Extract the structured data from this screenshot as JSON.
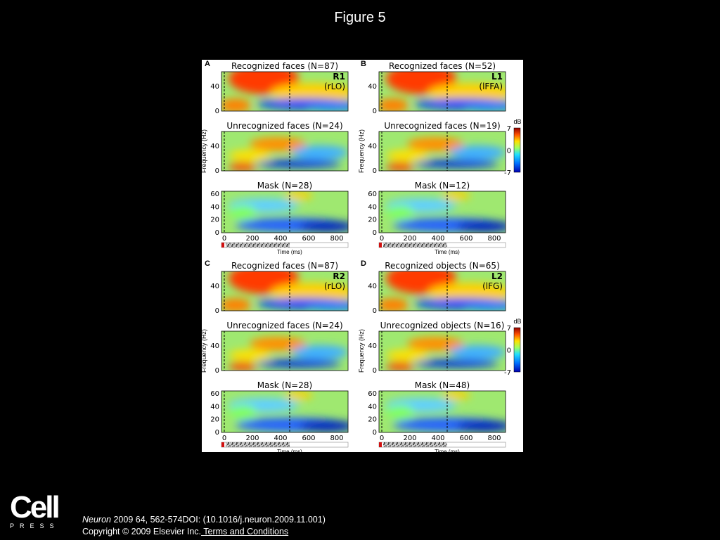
{
  "slide": {
    "title": "Figure 5"
  },
  "figure": {
    "colorbar": {
      "unit": "dB",
      "ticks": [
        "7",
        "0",
        "-7"
      ]
    },
    "common": {
      "ylabel": "Frequency (Hz)",
      "xlabel": "Time (ms)",
      "xticks": [
        "0",
        "200",
        "400",
        "600",
        "800"
      ],
      "yticks_short": [
        "40",
        "0"
      ],
      "yticks_long": [
        "60",
        "40",
        "20",
        "0"
      ]
    },
    "panels": [
      {
        "letter": "A",
        "id": "R1",
        "region": "(rLO)",
        "titles": [
          "Recognized faces (N=87)",
          "Unrecognized faces (N=24)",
          "Mask (N=28)"
        ]
      },
      {
        "letter": "B",
        "id": "L1",
        "region": "(lFFA)",
        "titles": [
          "Recognized faces (N=52)",
          "Unrecognized faces (N=19)",
          "Mask (N=12)"
        ]
      },
      {
        "letter": "C",
        "id": "R2",
        "region": "(rLO)",
        "titles": [
          "Recognized faces (N=87)",
          "Unrecognized faces (N=24)",
          "Mask (N=28)"
        ]
      },
      {
        "letter": "D",
        "id": "L2",
        "region": "(lFG)",
        "titles": [
          "Recognized objects (N=65)",
          "Unrecognized objects (N=16)",
          "Mask (N=48)"
        ]
      }
    ]
  },
  "footer": {
    "citation_journal": "Neuron",
    "citation_rest": " 2009 64, 562-574DOI: (10.1016/j.neuron.2009.11.001)",
    "copyright": "Copyright © 2009 Elsevier Inc.",
    "terms_link": " Terms and Conditions"
  },
  "logo": {
    "word": "Cell",
    "press": "PRESS"
  }
}
